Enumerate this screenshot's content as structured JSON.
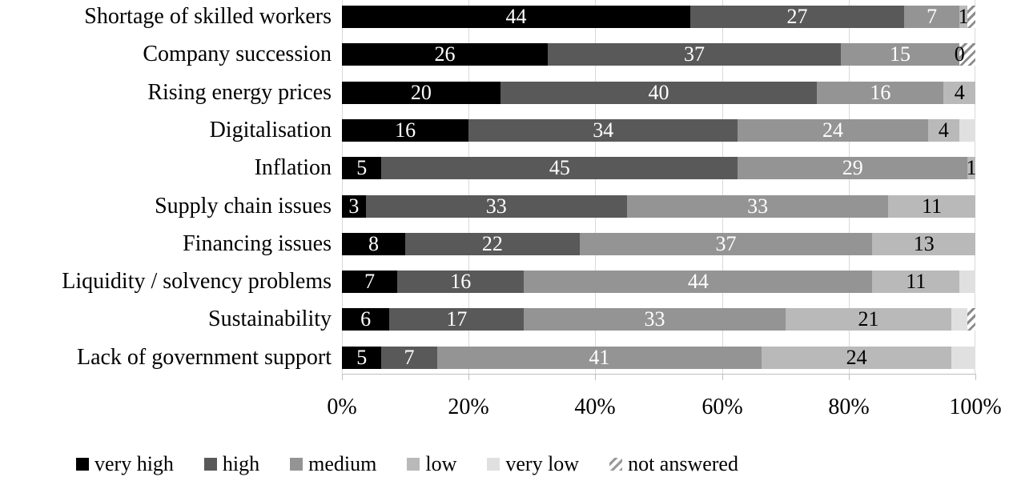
{
  "chart_data": {
    "type": "bar",
    "variant": "horizontal-stacked-100-percent",
    "title": "",
    "xlabel": "",
    "ylabel": "",
    "xlim": [
      0,
      100
    ],
    "row_total": 80,
    "grid": "vertical gridlines every 20%",
    "legend_position": "bottom",
    "xticks": [
      "0%",
      "20%",
      "40%",
      "60%",
      "80%",
      "100%"
    ],
    "categories": [
      "Shortage of skilled workers",
      "Company succession",
      "Rising energy prices",
      "Digitalisation",
      "Inflation",
      "Supply chain issues",
      "Financing issues",
      "Liquidity / solvency problems",
      "Sustainability",
      "Lack of government support"
    ],
    "series": [
      {
        "name": "very high",
        "color": "#000000",
        "label_color": "#ffffff",
        "labeled": true,
        "values": [
          44,
          26,
          20,
          16,
          5,
          3,
          8,
          7,
          6,
          5
        ]
      },
      {
        "name": "high",
        "color": "#595959",
        "label_color": "#ffffff",
        "labeled": true,
        "values": [
          27,
          37,
          40,
          34,
          45,
          33,
          22,
          16,
          17,
          7
        ]
      },
      {
        "name": "medium",
        "color": "#949494",
        "label_color": "#ffffff",
        "labeled": true,
        "values": [
          7,
          15,
          16,
          24,
          29,
          33,
          37,
          44,
          33,
          41
        ]
      },
      {
        "name": "low",
        "color": "#b9b9b9",
        "label_color": "#000000",
        "labeled": true,
        "values": [
          1,
          0,
          4,
          4,
          1,
          11,
          13,
          11,
          21,
          24
        ]
      },
      {
        "name": "very low",
        "color": "#e0e0e0",
        "label_color": "#000000",
        "labeled": false,
        "values": [
          0,
          0,
          0,
          2,
          0,
          0,
          0,
          2,
          2,
          3
        ]
      },
      {
        "name": "not answered",
        "color": "hatch",
        "label_color": "#000000",
        "labeled": false,
        "values": [
          1,
          2,
          0,
          0,
          0,
          0,
          0,
          0,
          1,
          0
        ]
      }
    ]
  },
  "style_colors": {
    "gridline": "#d9d9d9",
    "axis": "#bfbfbf",
    "hatch_stripe": "#8c8c8c",
    "background": "#ffffff"
  },
  "layout_note_visible_elements": {
    "legend_labels": [
      "very high",
      "high",
      "medium",
      "low",
      "very low",
      "not answered"
    ]
  }
}
